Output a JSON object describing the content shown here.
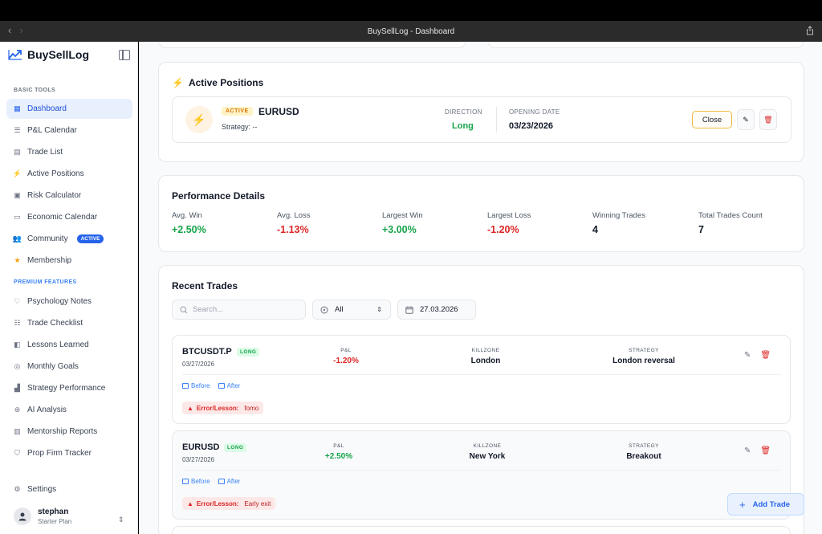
{
  "window": {
    "title": "BuySellLog - Dashboard"
  },
  "brand": {
    "name": "BuySellLog"
  },
  "sidebar": {
    "sections": {
      "basic": "BASIC TOOLS",
      "premium": "PREMIUM FEATURES"
    },
    "basic_items": [
      {
        "label": "Dashboard",
        "icon": "grid-icon"
      },
      {
        "label": "P&L Calendar",
        "icon": "calendar-list-icon"
      },
      {
        "label": "Trade List",
        "icon": "list-icon"
      },
      {
        "label": "Active Positions",
        "icon": "bolt-icon"
      },
      {
        "label": "Risk Calculator",
        "icon": "calculator-icon"
      },
      {
        "label": "Economic Calendar",
        "icon": "calendar-icon"
      },
      {
        "label": "Community",
        "icon": "users-icon",
        "badge": "ACTIVE"
      },
      {
        "label": "Membership",
        "icon": "star-icon"
      }
    ],
    "premium_items": [
      {
        "label": "Psychology Notes",
        "icon": "heart-pulse-icon"
      },
      {
        "label": "Trade Checklist",
        "icon": "checklist-icon"
      },
      {
        "label": "Lessons Learned",
        "icon": "book-icon"
      },
      {
        "label": "Monthly Goals",
        "icon": "target-icon"
      },
      {
        "label": "Strategy Performance",
        "icon": "bar-chart-icon"
      },
      {
        "label": "AI Analysis",
        "icon": "ai-icon"
      },
      {
        "label": "Mentorship Reports",
        "icon": "report-icon"
      },
      {
        "label": "Prop Firm Tracker",
        "icon": "shield-icon"
      }
    ],
    "settings": "Settings",
    "user": {
      "name": "stephan",
      "plan": "Starter Plan"
    }
  },
  "active_positions": {
    "title": "Active Positions",
    "position": {
      "status": "ACTIVE",
      "symbol": "EURUSD",
      "strategy": "Strategy: --",
      "direction_label": "DIRECTION",
      "direction": "Long",
      "opening_date_label": "OPENING DATE",
      "opening_date": "03/23/2026",
      "close_label": "Close"
    }
  },
  "performance": {
    "title": "Performance Details",
    "stats": [
      {
        "label": "Avg. Win",
        "value": "+2.50%"
      },
      {
        "label": "Avg. Loss",
        "value": "-1.13%"
      },
      {
        "label": "Largest Win",
        "value": "+3.00%"
      },
      {
        "label": "Largest Loss",
        "value": "-1.20%"
      },
      {
        "label": "Winning Trades",
        "value": "4"
      },
      {
        "label": "Total Trades Count",
        "value": "7"
      }
    ]
  },
  "recent_trades": {
    "title": "Recent Trades",
    "search_placeholder": "Search...",
    "filter_value": "All",
    "date_value": "27.03.2026",
    "labels": {
      "pnl": "P&L",
      "killzone": "KILLZONE",
      "strategy": "STRATEGY",
      "before": "Before",
      "after": "After",
      "error": "Error/Lesson:"
    },
    "trades": [
      {
        "symbol": "BTCUSDT.P",
        "side": "LONG",
        "date": "03/27/2026",
        "pnl": "-1.20%",
        "killzone": "London",
        "strategy": "London reversal",
        "lesson": "fomo"
      },
      {
        "symbol": "EURUSD",
        "side": "LONG",
        "date": "03/27/2026",
        "pnl": "+2.50%",
        "killzone": "New York",
        "strategy": "Breakout",
        "lesson": "Early exit"
      }
    ],
    "add_trade_label": "Add Trade"
  }
}
